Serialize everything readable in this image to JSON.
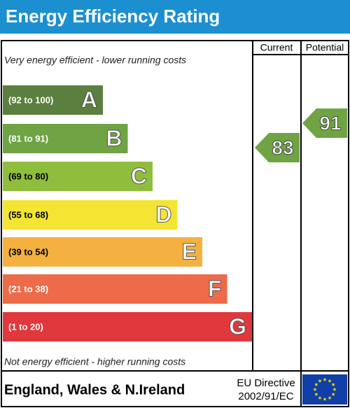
{
  "title": "Energy Efficiency Rating",
  "columns": {
    "current": "Current",
    "potential": "Potential"
  },
  "top_note": "Very energy efficient - lower running costs",
  "bottom_note": "Not energy efficient - higher running costs",
  "bands": [
    {
      "range": "(92 to 100)",
      "letter": "A",
      "color": "#5b7f3e"
    },
    {
      "range": "(81 to 91)",
      "letter": "B",
      "color": "#6fa343"
    },
    {
      "range": "(69 to 80)",
      "letter": "C",
      "color": "#8fbe3d"
    },
    {
      "range": "(55 to 68)",
      "letter": "D",
      "color": "#f4e533"
    },
    {
      "range": "(39 to 54)",
      "letter": "E",
      "color": "#f5b13f"
    },
    {
      "range": "(21 to 38)",
      "letter": "F",
      "color": "#ed6b49"
    },
    {
      "range": "(1 to 20)",
      "letter": "G",
      "color": "#e0383c"
    }
  ],
  "current": {
    "value": 83,
    "color": "#6fa343"
  },
  "potential": {
    "value": 91,
    "color": "#6fa343"
  },
  "footer": {
    "region": "England, Wales & N.Ireland",
    "directive": [
      "EU Directive",
      "2002/91/EC"
    ]
  }
}
